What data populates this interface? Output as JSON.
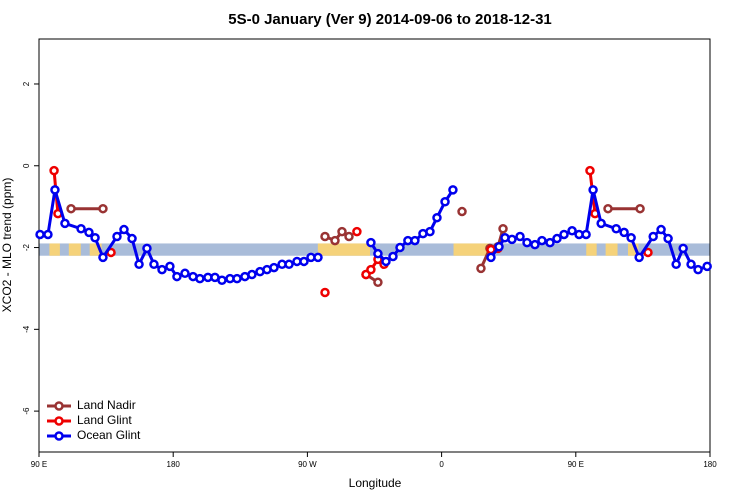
{
  "chart_data": {
    "type": "line",
    "title": "5S-0 January (Ver 9)   2014-09-06 to 2018-12-31",
    "x_label": "Longitude",
    "y_label": "XCO2 - MLO trend (ppm)",
    "xlim": [
      90,
      540
    ],
    "ylim": [
      -7,
      3.1
    ],
    "xticks": [
      {
        "value": 90,
        "label": "90 E"
      },
      180,
      {
        "value": 270,
        "label": "90 W"
      },
      {
        "value": 360,
        "label": "0"
      },
      {
        "value": 450,
        "label": "90 E"
      },
      {
        "value": 540,
        "label": "180"
      }
    ],
    "yticks": [
      2,
      0,
      -2,
      -4,
      -6
    ],
    "band": [
      -2.2,
      -1.9
    ],
    "band_color": "#a9bcd9",
    "land_ranges": [
      [
        97,
        104
      ],
      [
        110,
        118
      ],
      [
        124,
        132
      ],
      [
        277,
        312
      ],
      [
        368,
        392
      ],
      [
        457,
        464
      ],
      [
        470,
        478
      ],
      [
        485,
        492
      ]
    ],
    "land_color": "#f5d27a",
    "legend": "bottom-left",
    "series": [
      {
        "name": "Land Nadir",
        "color": "#993333",
        "x": [
          111.5,
          132.9,
          200,
          281.8,
          288.5,
          293.2,
          297.9,
          303,
          309.3,
          317.3,
          350,
          373.7,
          380,
          386.4,
          392.4,
          397.8,
          401.2,
          440,
          471.6,
          493.1
        ],
        "values": [
          -1.05,
          -1.05,
          null,
          -1.73,
          -1.83,
          -1.61,
          -1.73,
          null,
          -2.66,
          -2.85,
          null,
          -1.12,
          null,
          -2.51,
          -2.02,
          -1.98,
          -1.54,
          null,
          -1.05,
          -1.05
        ]
      },
      {
        "name": "Land Glint",
        "color": "#ee0000",
        "x": [
          100.1,
          102.7,
          120,
          138.3,
          200,
          281.8,
          300,
          303.2,
          306,
          309.3,
          312.6,
          317.3,
          321.4,
          350,
          393.1,
          397.8,
          420,
          459.5,
          462.9,
          480,
          498.4
        ],
        "values": [
          -0.12,
          -1.17,
          null,
          -2.12,
          null,
          -3.1,
          null,
          -1.61,
          null,
          -2.66,
          -2.54,
          -2.29,
          -2.41,
          null,
          -2.05,
          -2.02,
          null,
          -0.12,
          -1.17,
          null,
          -2.12
        ]
      },
      {
        "name": "Ocean Glint",
        "color": "#0000ee",
        "x": [
          90.7,
          96.0,
          100.7,
          107.4,
          118.2,
          123.5,
          127.6,
          132.9,
          142.3,
          147.0,
          152.4,
          157.1,
          162.4,
          167.1,
          172.5,
          177.8,
          182.5,
          187.9,
          193.3,
          197.9,
          203.3,
          208.0,
          212.7,
          218.1,
          222.8,
          228.1,
          232.8,
          238.2,
          242.9,
          247.6,
          253.0,
          257.7,
          263.0,
          267.7,
          272.4,
          277.1,
          295,
          312.6,
          317.3,
          322.7,
          327.4,
          332.1,
          337.4,
          342.1,
          347.5,
          352.2,
          356.9,
          362.3,
          367.6,
          380,
          393.1,
          398.5,
          402.5,
          407.2,
          412.6,
          417.3,
          422.6,
          427.3,
          432.7,
          437.4,
          442.1,
          447.5,
          452.2,
          456.9,
          461.6,
          467.0,
          477.1,
          482.4,
          487.1,
          492.5,
          501.9,
          507.2,
          511.9,
          517.3,
          522.0,
          527.3,
          532.0,
          538.1
        ],
        "values": [
          -1.68,
          -1.68,
          -0.59,
          -1.41,
          -1.54,
          -1.63,
          -1.76,
          -2.24,
          -1.73,
          -1.56,
          -1.78,
          -2.41,
          -2.02,
          -2.41,
          -2.54,
          -2.46,
          -2.71,
          -2.63,
          -2.71,
          -2.76,
          -2.73,
          -2.73,
          -2.8,
          -2.76,
          -2.76,
          -2.71,
          -2.66,
          -2.59,
          -2.54,
          -2.49,
          -2.41,
          -2.41,
          -2.34,
          -2.34,
          -2.24,
          -2.24,
          null,
          -1.88,
          -2.15,
          -2.34,
          -2.22,
          -2.0,
          -1.83,
          -1.83,
          -1.66,
          -1.61,
          -1.27,
          -0.88,
          -0.59,
          null,
          -2.24,
          -1.98,
          -1.76,
          -1.8,
          -1.73,
          -1.88,
          -1.93,
          -1.83,
          -1.88,
          -1.78,
          -1.68,
          -1.59,
          -1.68,
          -1.68,
          -0.59,
          -1.41,
          -1.54,
          -1.63,
          -1.76,
          -2.24,
          -1.73,
          -1.56,
          -1.78,
          -2.41,
          -2.02,
          -2.41,
          -2.54,
          -2.46
        ]
      }
    ]
  }
}
